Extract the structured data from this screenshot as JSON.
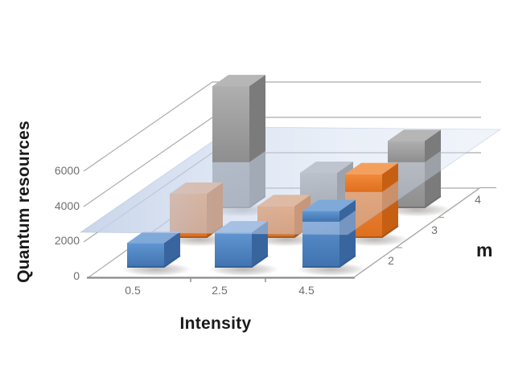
{
  "chart_data": {
    "type": "bar",
    "projection": "3d-column",
    "title": "",
    "xlabel": "Intensity",
    "ylabel": "Quantum resources",
    "zlabel": "m",
    "categories": [
      "0.5",
      "2.5",
      "4.5"
    ],
    "series": [
      {
        "name": "m=2",
        "z_label": "2",
        "values": [
          1400,
          2000,
          3200
        ],
        "colors": {
          "front": "#4E86C4",
          "front_light": "#6096D2",
          "front_dark": "#4072B0",
          "top": "#7FA9D9",
          "side": "#38659E",
          "edge": "#2E578C"
        }
      },
      {
        "name": "m=3",
        "z_label": "3",
        "values": [
          2500,
          1800,
          3600
        ],
        "colors": {
          "front": "#ED7D2E",
          "front_light": "#F28A3C",
          "front_dark": "#DE6F1E",
          "top": "#F3A05F",
          "side": "#C75F13",
          "edge": "#9A4C10"
        }
      },
      {
        "name": "m=4",
        "z_label": "4",
        "values": [
          6900,
          2000,
          3800
        ],
        "colors": {
          "front": "#9E9E9E",
          "front_light": "#AFAFAF",
          "front_dark": "#8E8E8E",
          "top": "#B6B6B6",
          "side": "#7B7B7B",
          "edge": "#6A6A6A"
        }
      }
    ],
    "y_ticks": [
      "6000",
      "4000",
      "2000",
      "0"
    ],
    "y_tick_values": [
      6000,
      4000,
      2000,
      0
    ],
    "x_ticks": [
      "0.5",
      "2.5",
      "4.5"
    ],
    "z_ticks": [
      "2",
      "3",
      "4"
    ],
    "ylim": [
      0,
      7000
    ],
    "grid": true,
    "legend": "none",
    "plane": {
      "value": 2600,
      "color": "#C5D2EA",
      "description": "translucent horizontal threshold plane"
    },
    "background": "#ffffff",
    "gridline_color": "#ABABAB",
    "axis_color": "#8A8A8A",
    "tick_text_color": "#6f6f6f",
    "title_text_color": "#1a1a1a"
  },
  "axes": {
    "y_title": "Quantum resources",
    "x_title": "Intensity",
    "z_title": "m"
  }
}
